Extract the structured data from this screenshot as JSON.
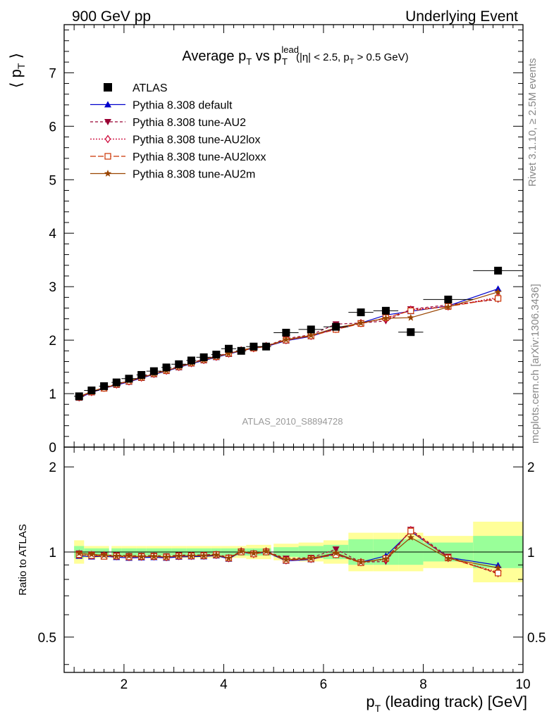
{
  "header": {
    "left": "900 GeV pp",
    "right": "Underlying Event"
  },
  "side_labels": {
    "rivet": "Rivet 3.1.10, ≥ 2.5M events",
    "mcplots": "mcplots.cern.ch [arXiv:1306.3436]"
  },
  "chart_data": {
    "type": "scatter",
    "title": {
      "main": "Average p",
      "sub1": "T",
      "mid": " vs p",
      "sup": "lead",
      "sub2": "T",
      "cut_a": "(|η| < 2.5, p",
      "cut_sub": "T",
      "cut_b": " > 0.5 GeV)"
    },
    "analysis_id": "ATLAS_2010_S8894728",
    "ylabel_top": {
      "pre": "⟨ p",
      "sub": "T",
      "post": " ⟩"
    },
    "ylabel_bottom": "Ratio to ATLAS",
    "xlabel": {
      "pre": "p",
      "sub": "T",
      "post": " (leading track) [GeV]"
    },
    "xlim": [
      0.8,
      10.0
    ],
    "ylim_top": [
      0,
      7.9
    ],
    "ylim_ratio": [
      0.375,
      2.35
    ],
    "ratio_log_scale": true,
    "xticks": [
      "2",
      "4",
      "6",
      "8",
      "10"
    ],
    "yticks_top": [
      "0",
      "1",
      "2",
      "3",
      "4",
      "5",
      "6",
      "7"
    ],
    "yticks_ratio": [
      "0.5",
      "1",
      "2"
    ],
    "legend_position": "top-left",
    "data": {
      "name": "ATLAS",
      "color": "#000000",
      "x": [
        1.1,
        1.35,
        1.6,
        1.85,
        2.1,
        2.35,
        2.6,
        2.85,
        3.1,
        3.35,
        3.6,
        3.85,
        4.1,
        4.35,
        4.6,
        4.85,
        5.25,
        5.75,
        6.25,
        6.75,
        7.25,
        7.75,
        8.5,
        9.5
      ],
      "xerr": [
        0.1,
        0.15,
        0.1,
        0.1,
        0.15,
        0.1,
        0.15,
        0.1,
        0.15,
        0.1,
        0.15,
        0.1,
        0.15,
        0.1,
        0.15,
        0.1,
        0.25,
        0.25,
        0.25,
        0.25,
        0.25,
        0.25,
        0.5,
        0.5
      ],
      "y": [
        0.95,
        1.06,
        1.14,
        1.21,
        1.28,
        1.35,
        1.42,
        1.49,
        1.55,
        1.62,
        1.68,
        1.73,
        1.84,
        1.8,
        1.88,
        1.88,
        2.14,
        2.2,
        2.25,
        2.52,
        2.55,
        2.15,
        2.76,
        3.3
      ]
    },
    "band_outer": [
      1.1,
      1.05,
      1.05,
      1.05,
      1.05,
      1.05,
      1.05,
      1.05,
      1.05,
      1.05,
      1.05,
      1.05,
      1.05,
      1.05,
      1.06,
      1.06,
      1.07,
      1.08,
      1.1,
      1.17,
      1.17,
      1.17,
      1.14,
      1.28
    ],
    "band_inner": [
      1.05,
      1.03,
      1.03,
      1.03,
      1.03,
      1.03,
      1.03,
      1.03,
      1.03,
      1.03,
      1.03,
      1.03,
      1.03,
      1.03,
      1.03,
      1.03,
      1.04,
      1.05,
      1.06,
      1.11,
      1.11,
      1.11,
      1.08,
      1.14
    ],
    "series": [
      {
        "name": "Pythia 8.308 default",
        "color": "#0000cc",
        "marker": "triangle-up",
        "dash": "",
        "y": [
          0.92,
          1.02,
          1.1,
          1.16,
          1.22,
          1.29,
          1.36,
          1.42,
          1.49,
          1.56,
          1.62,
          1.68,
          1.74,
          1.8,
          1.85,
          1.88,
          1.99,
          2.07,
          2.22,
          2.32,
          2.47,
          2.54,
          2.64,
          2.96
        ]
      },
      {
        "name": "Pythia 8.308 tune-AU2",
        "color": "#990033",
        "marker": "triangle-down",
        "dash": "4 3",
        "y": [
          0.94,
          1.04,
          1.11,
          1.18,
          1.24,
          1.31,
          1.38,
          1.44,
          1.51,
          1.58,
          1.64,
          1.7,
          1.76,
          1.81,
          1.86,
          1.89,
          2.03,
          2.1,
          2.3,
          2.32,
          2.36,
          2.58,
          2.66,
          2.76
        ]
      },
      {
        "name": "Pythia 8.308 tune-AU2lox",
        "color": "#cc0033",
        "marker": "diamond",
        "dash": "2 2",
        "y": [
          0.93,
          1.03,
          1.11,
          1.17,
          1.23,
          1.3,
          1.37,
          1.43,
          1.5,
          1.57,
          1.63,
          1.69,
          1.75,
          1.81,
          1.85,
          1.89,
          2.0,
          2.08,
          2.21,
          2.32,
          2.4,
          2.57,
          2.63,
          2.8
        ]
      },
      {
        "name": "Pythia 8.308 tune-AU2loxx",
        "color": "#cc3300",
        "marker": "square-open",
        "dash": "8 3",
        "y": [
          0.93,
          1.03,
          1.1,
          1.17,
          1.23,
          1.3,
          1.37,
          1.43,
          1.5,
          1.57,
          1.63,
          1.69,
          1.75,
          1.8,
          1.85,
          1.88,
          2.0,
          2.08,
          2.2,
          2.31,
          2.42,
          2.55,
          2.63,
          2.78
        ]
      },
      {
        "name": "Pythia 8.308 tune-AU2m",
        "color": "#994400",
        "marker": "star",
        "dash": "",
        "y": [
          0.94,
          1.04,
          1.11,
          1.17,
          1.24,
          1.3,
          1.37,
          1.43,
          1.5,
          1.57,
          1.63,
          1.69,
          1.75,
          1.81,
          1.86,
          1.89,
          2.01,
          2.09,
          2.23,
          2.32,
          2.41,
          2.42,
          2.62,
          2.9
        ]
      }
    ]
  }
}
